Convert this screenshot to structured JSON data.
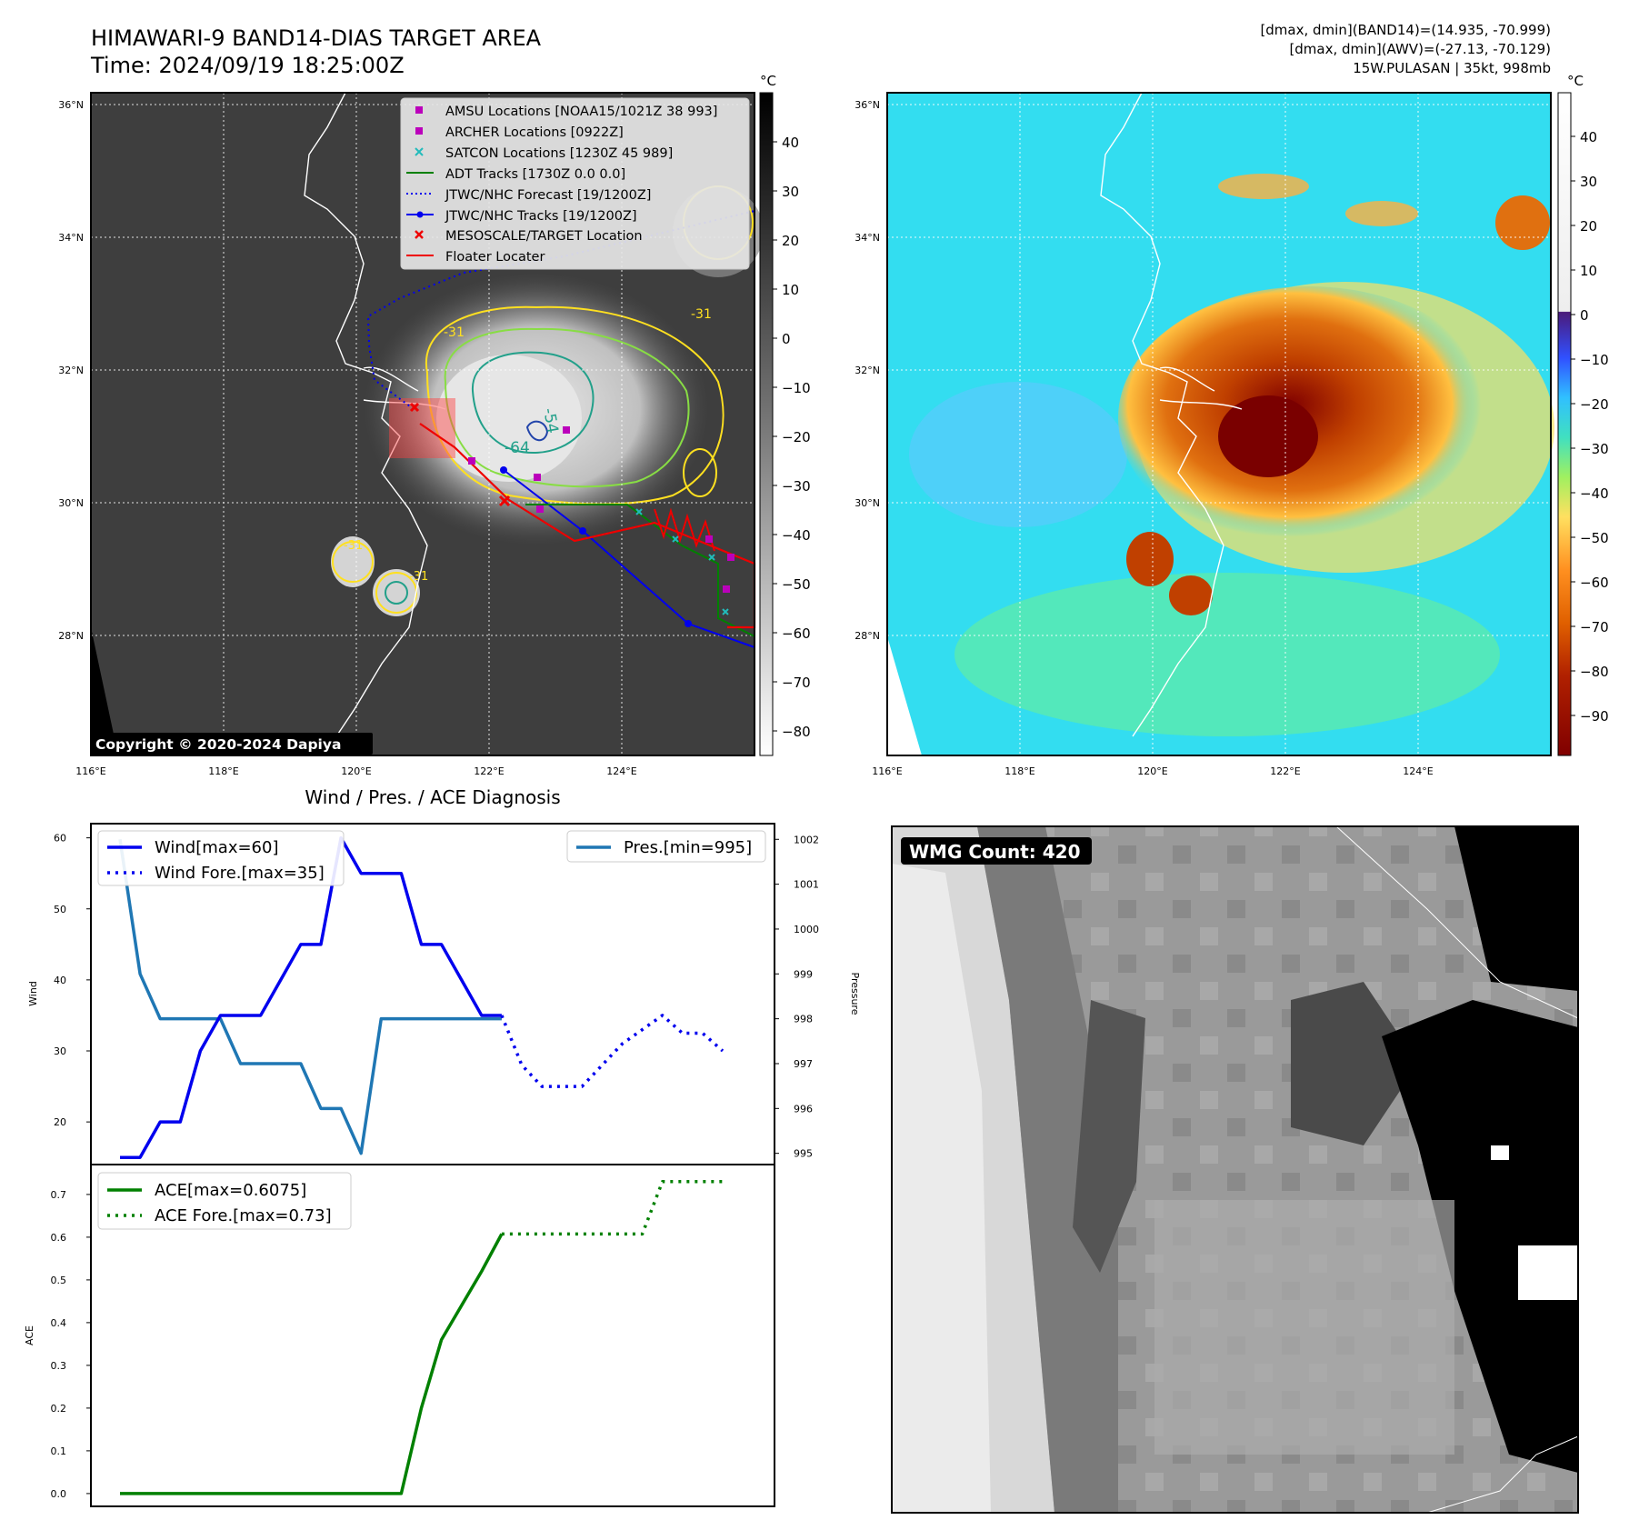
{
  "header": {
    "title_line1": "HIMAWARI-9 BAND14-DIAS TARGET AREA",
    "title_line2": "Time: 2024/09/19 18:25:00Z",
    "info_line1": "[dmax, dmin](BAND14)=(14.935, -70.999)",
    "info_line2": "[dmax, dmin](AWV)=(-27.13, -70.129)",
    "info_line3": "15W.PULASAN | 35kt, 998mb"
  },
  "colors": {
    "wind": "#0000ee",
    "pressure": "#1f77b4",
    "ace": "#008000",
    "track_red": "#ee0000",
    "amsu": "#bb00bb",
    "satcon": "#22bbbb",
    "awv_background": "#33ddf0",
    "awv_storm": "#c05000"
  },
  "map": {
    "unit_label": "°C",
    "lat_labels": [
      "36°N",
      "34°N",
      "32°N",
      "30°N",
      "28°N"
    ],
    "lon_labels": [
      "116°E",
      "118°E",
      "120°E",
      "122°E",
      "124°E"
    ],
    "copyright": "Copyright © 2020-2024 Dapiya",
    "contour_labels": [
      "-31",
      "-54",
      "-64",
      "-31",
      "-31",
      "-31"
    ],
    "ir_colorbar_ticks": [
      "40",
      "30",
      "20",
      "10",
      "0",
      "−10",
      "−20",
      "−30",
      "−40",
      "−50",
      "−60",
      "−70",
      "−80"
    ],
    "awv_colorbar_ticks": [
      "40",
      "30",
      "20",
      "10",
      "0",
      "−10",
      "−20",
      "−30",
      "−40",
      "−50",
      "−60",
      "−70",
      "−80",
      "−90"
    ],
    "legend": [
      {
        "label": "AMSU Locations [NOAA15/1021Z 38 993]",
        "marker": "square",
        "color": "#bb00bb"
      },
      {
        "label": "ARCHER Locations [0922Z]",
        "marker": "square",
        "color": "#bb00bb"
      },
      {
        "label": "SATCON Locations [1230Z 45 989]",
        "marker": "x",
        "color": "#22bbbb"
      },
      {
        "label": "ADT Tracks [1730Z 0.0 0.0]",
        "marker": "line",
        "color": "#008000"
      },
      {
        "label": "JTWC/NHC Forecast [19/1200Z]",
        "marker": "dotted",
        "color": "#0000ee"
      },
      {
        "label": "JTWC/NHC Tracks [19/1200Z]",
        "marker": "line-dot",
        "color": "#0000ee"
      },
      {
        "label": "MESOSCALE/TARGET Location",
        "marker": "x",
        "color": "#ee0000"
      },
      {
        "label": "Floater Locater",
        "marker": "line",
        "color": "#ee0000"
      }
    ]
  },
  "diagnosis": {
    "title": "Wind / Pres. / ACE Diagnosis",
    "wind_ylabel": "Wind",
    "pressure_ylabel": "Pressure",
    "ace_ylabel": "ACE",
    "legend_wind": "Wind[max=60]",
    "legend_wind_fore": "Wind Fore.[max=35]",
    "legend_pres": "Pres.[min=995]",
    "legend_ace": "ACE[max=0.6075]",
    "legend_ace_fore": "ACE Fore.[max=0.73]"
  },
  "wmg": {
    "label": "WMG Count: 420"
  },
  "chart_data": [
    {
      "type": "line",
      "title": "Wind / Pres. / ACE Diagnosis",
      "ylabel": "Wind",
      "y2label": "Pressure",
      "x": [
        0,
        1,
        2,
        3,
        4,
        5,
        6,
        7,
        8,
        9,
        10,
        11,
        12,
        13,
        14,
        15,
        16,
        17,
        18,
        19
      ],
      "ylim": [
        14,
        62
      ],
      "y2lim": [
        994.75,
        1002.35
      ],
      "yticks": [
        20,
        30,
        40,
        50,
        60
      ],
      "y2ticks": [
        995,
        996,
        997,
        998,
        999,
        1000,
        1001,
        1002
      ],
      "series": [
        {
          "name": "Wind[max=60]",
          "axis": "left",
          "style": "solid",
          "x": [
            0,
            1,
            2,
            3,
            4,
            5,
            6,
            7,
            8,
            9,
            10,
            11,
            12,
            13,
            14,
            15,
            16,
            17,
            18,
            19
          ],
          "values": [
            15,
            15,
            20,
            20,
            30,
            35,
            35,
            35,
            40,
            45,
            45,
            60,
            55,
            55,
            55,
            45,
            45,
            40,
            35,
            35
          ]
        },
        {
          "name": "Wind Fore.[max=35]",
          "axis": "left",
          "style": "dotted",
          "x": [
            19,
            20,
            21,
            22,
            23,
            24,
            25,
            26,
            27,
            28,
            29,
            30
          ],
          "values": [
            35,
            28,
            25,
            25,
            25,
            28,
            31,
            33,
            35,
            32.5,
            32.5,
            30
          ]
        },
        {
          "name": "Pres.[min=995]",
          "axis": "right",
          "style": "solid",
          "x": [
            0,
            1,
            2,
            3,
            4,
            5,
            6,
            7,
            8,
            9,
            10,
            11,
            12,
            13,
            14,
            15,
            16,
            17,
            18,
            19
          ],
          "values": [
            1002,
            999,
            998,
            998,
            998,
            998,
            997,
            997,
            997,
            997,
            996,
            996,
            995,
            998,
            998,
            998,
            998,
            998,
            998,
            998
          ]
        }
      ]
    },
    {
      "type": "line",
      "ylabel": "ACE",
      "ylim": [
        -0.03,
        0.77
      ],
      "yticks": [
        0.0,
        0.1,
        0.2,
        0.3,
        0.4,
        0.5,
        0.6,
        0.7
      ],
      "series": [
        {
          "name": "ACE[max=0.6075]",
          "style": "solid",
          "x": [
            0,
            1,
            2,
            3,
            4,
            5,
            6,
            7,
            8,
            9,
            10,
            11,
            12,
            13,
            14,
            15,
            16,
            17,
            18,
            19
          ],
          "values": [
            0,
            0,
            0,
            0,
            0,
            0,
            0,
            0,
            0,
            0,
            0,
            0,
            0,
            0,
            0,
            0.2,
            0.36,
            0.44,
            0.52,
            0.6075
          ]
        },
        {
          "name": "ACE Fore.[max=0.73]",
          "style": "dotted",
          "x": [
            19,
            20,
            21,
            22,
            23,
            24,
            25,
            26,
            27,
            28,
            29,
            30
          ],
          "values": [
            0.6075,
            0.6075,
            0.6075,
            0.6075,
            0.6075,
            0.6075,
            0.6075,
            0.6075,
            0.73,
            0.73,
            0.73,
            0.73
          ]
        }
      ]
    }
  ]
}
